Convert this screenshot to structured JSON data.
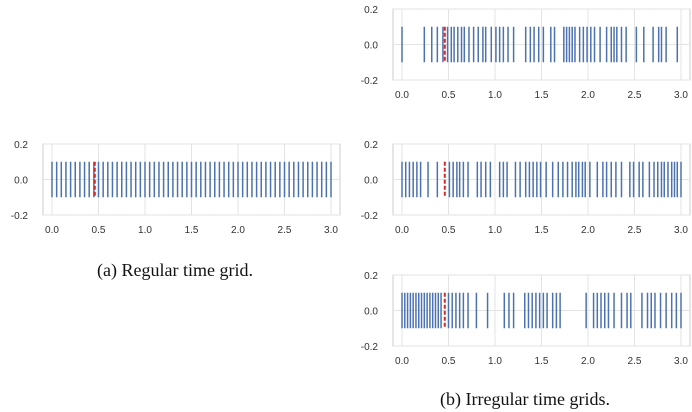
{
  "chart_data": [
    {
      "type": "event-raster",
      "panel": "a",
      "caption": "(a) Regular time grid.",
      "xlim": [
        0.0,
        3.0
      ],
      "ylim": [
        -0.2,
        0.2
      ],
      "xticks": [
        "0.0",
        "0.5",
        "1.0",
        "1.5",
        "2.0",
        "2.5",
        "3.0"
      ],
      "yticks": [
        "0.2",
        "0.0",
        "-0.2"
      ],
      "grid": true,
      "event_color": "#4C72B0",
      "marker_color": "#D62728",
      "marker_x": 0.46,
      "events": [
        0.0,
        0.05,
        0.1,
        0.15,
        0.2,
        0.25,
        0.3,
        0.35,
        0.4,
        0.45,
        0.5,
        0.55,
        0.6,
        0.65,
        0.7,
        0.75,
        0.8,
        0.85,
        0.9,
        0.95,
        1.0,
        1.05,
        1.1,
        1.15,
        1.2,
        1.25,
        1.3,
        1.35,
        1.4,
        1.45,
        1.5,
        1.55,
        1.6,
        1.65,
        1.7,
        1.75,
        1.8,
        1.85,
        1.9,
        1.95,
        2.0,
        2.05,
        2.1,
        2.15,
        2.2,
        2.25,
        2.3,
        2.35,
        2.4,
        2.45,
        2.5,
        2.55,
        2.6,
        2.65,
        2.7,
        2.75,
        2.8,
        2.85,
        2.9,
        2.95,
        3.0
      ]
    },
    {
      "type": "event-raster",
      "panel": "b1",
      "caption": "",
      "xlim": [
        0.0,
        3.0
      ],
      "ylim": [
        -0.2,
        0.2
      ],
      "xticks": [
        "0.0",
        "0.5",
        "1.0",
        "1.5",
        "2.0",
        "2.5",
        "3.0"
      ],
      "yticks": [
        "0.2",
        "0.0",
        "-0.2"
      ],
      "grid": true,
      "event_color": "#4C72B0",
      "marker_color": "#D62728",
      "marker_x": 0.46,
      "events": [
        0.0,
        0.24,
        0.32,
        0.38,
        0.44,
        0.49,
        0.53,
        0.56,
        0.6,
        0.64,
        0.67,
        0.72,
        0.77,
        0.82,
        0.87,
        0.9,
        0.96,
        1.01,
        1.05,
        1.09,
        1.14,
        1.2,
        1.33,
        1.38,
        1.42,
        1.47,
        1.52,
        1.6,
        1.64,
        1.74,
        1.77,
        1.8,
        1.83,
        1.86,
        1.91,
        1.95,
        1.99,
        2.03,
        2.07,
        2.13,
        2.2,
        2.25,
        2.28,
        2.31,
        2.36,
        2.41,
        2.52,
        2.6,
        2.7,
        2.76,
        2.79,
        2.84,
        2.96
      ]
    },
    {
      "type": "event-raster",
      "panel": "b2",
      "caption": "",
      "xlim": [
        0.0,
        3.0
      ],
      "ylim": [
        -0.2,
        0.2
      ],
      "xticks": [
        "0.0",
        "0.5",
        "1.0",
        "1.5",
        "2.0",
        "2.5",
        "3.0"
      ],
      "yticks": [
        "0.2",
        "0.0",
        "-0.2"
      ],
      "grid": true,
      "event_color": "#4C72B0",
      "marker_color": "#D62728",
      "marker_x": 0.46,
      "events": [
        0.0,
        0.04,
        0.08,
        0.12,
        0.16,
        0.2,
        0.28,
        0.38,
        0.51,
        0.55,
        0.59,
        0.62,
        0.66,
        0.71,
        0.81,
        0.85,
        0.9,
        0.95,
        1.05,
        1.09,
        1.13,
        1.22,
        1.27,
        1.33,
        1.37,
        1.41,
        1.45,
        1.49,
        1.55,
        1.62,
        1.68,
        1.73,
        1.78,
        1.83,
        1.87,
        1.9,
        1.94,
        1.97,
        2.02,
        2.1,
        2.16,
        2.2,
        2.25,
        2.3,
        2.36,
        2.45,
        2.49,
        2.55,
        2.59,
        2.66,
        2.71,
        2.75,
        2.79,
        2.82,
        2.86,
        2.9,
        2.93,
        2.96,
        3.0
      ]
    },
    {
      "type": "event-raster",
      "panel": "b3",
      "caption": "(b) Irregular time grids.",
      "xlim": [
        0.0,
        3.0
      ],
      "ylim": [
        -0.2,
        0.2
      ],
      "xticks": [
        "0.0",
        "0.5",
        "1.0",
        "1.5",
        "2.0",
        "2.5",
        "3.0"
      ],
      "yticks": [
        "0.2",
        "0.0",
        "-0.2"
      ],
      "grid": true,
      "event_color": "#4C72B0",
      "marker_color": "#D62728",
      "marker_x": 0.46,
      "events": [
        0.0,
        0.03,
        0.06,
        0.09,
        0.12,
        0.15,
        0.18,
        0.21,
        0.24,
        0.27,
        0.3,
        0.33,
        0.36,
        0.39,
        0.42,
        0.5,
        0.54,
        0.58,
        0.62,
        0.66,
        0.71,
        0.8,
        0.92,
        1.1,
        1.15,
        1.2,
        1.32,
        1.36,
        1.4,
        1.44,
        1.48,
        1.52,
        1.56,
        1.62,
        1.66,
        1.7,
        1.98,
        2.06,
        2.1,
        2.14,
        2.18,
        2.22,
        2.28,
        2.36,
        2.42,
        2.46,
        2.58,
        2.64,
        2.68,
        2.72,
        2.78,
        2.84,
        2.9,
        2.95,
        3.0
      ]
    }
  ]
}
